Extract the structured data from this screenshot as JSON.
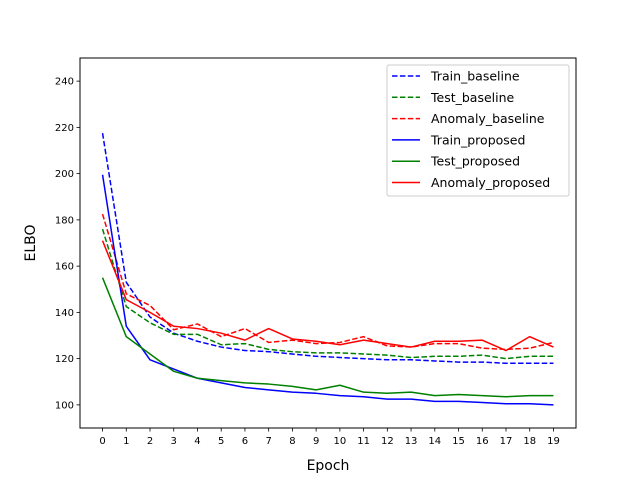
{
  "chart_data": {
    "type": "line",
    "title": "",
    "xlabel": "Epoch",
    "ylabel": "ELBO",
    "xlim": [
      -0.95,
      19.95
    ],
    "ylim": [
      90,
      250
    ],
    "x": [
      0,
      1,
      2,
      3,
      4,
      5,
      6,
      7,
      8,
      9,
      10,
      11,
      12,
      13,
      14,
      15,
      16,
      17,
      18,
      19
    ],
    "xticks": [
      "0",
      "1",
      "2",
      "3",
      "4",
      "5",
      "6",
      "7",
      "8",
      "9",
      "10",
      "11",
      "12",
      "13",
      "14",
      "15",
      "16",
      "17",
      "18",
      "19"
    ],
    "yticks": [
      100,
      120,
      140,
      160,
      180,
      200,
      220,
      240
    ],
    "grid": false,
    "legend_position": "top-right",
    "series": [
      {
        "name": "Train_baseline",
        "color": "#0000ff",
        "dash": true,
        "values": [
          217.5,
          153,
          138,
          131,
          127.5,
          125,
          123.5,
          123,
          122,
          121,
          120.5,
          120,
          119.5,
          119.5,
          119,
          118.5,
          118.5,
          118,
          118,
          118
        ]
      },
      {
        "name": "Test_baseline",
        "color": "#008000",
        "dash": true,
        "values": [
          176,
          142.5,
          135.5,
          130.5,
          130.5,
          126,
          126.5,
          124,
          123,
          122.5,
          122.5,
          122,
          121.5,
          120.5,
          121,
          121,
          121.5,
          120,
          121,
          121
        ]
      },
      {
        "name": "Anomaly_baseline",
        "color": "#ff0000",
        "dash": true,
        "values": [
          182.5,
          148,
          143,
          132.5,
          135,
          129.5,
          133,
          127,
          128,
          126.5,
          127,
          129.5,
          125.5,
          125,
          126.5,
          126.5,
          124.5,
          124,
          124.5,
          127
        ]
      },
      {
        "name": "Train_proposed",
        "color": "#0000ff",
        "dash": false,
        "values": [
          199.5,
          134,
          119.5,
          115.5,
          111.5,
          109.5,
          107.5,
          106.5,
          105.5,
          105,
          104,
          103.5,
          102.5,
          102.5,
          101.5,
          101.5,
          101,
          100.5,
          100.5,
          100
        ]
      },
      {
        "name": "Test_proposed",
        "color": "#008000",
        "dash": false,
        "values": [
          155,
          129.5,
          122,
          114.5,
          111.5,
          110.5,
          109.5,
          109,
          108,
          106.5,
          108.5,
          105.5,
          105,
          105.5,
          104,
          104.5,
          104,
          103.5,
          104,
          104
        ]
      },
      {
        "name": "Anomaly_proposed",
        "color": "#ff0000",
        "dash": false,
        "values": [
          171,
          145.5,
          140,
          134,
          133,
          131,
          128,
          133,
          128.5,
          127.5,
          126,
          128,
          126.5,
          125,
          127.5,
          127.5,
          128,
          123.5,
          129.5,
          125
        ]
      }
    ]
  }
}
